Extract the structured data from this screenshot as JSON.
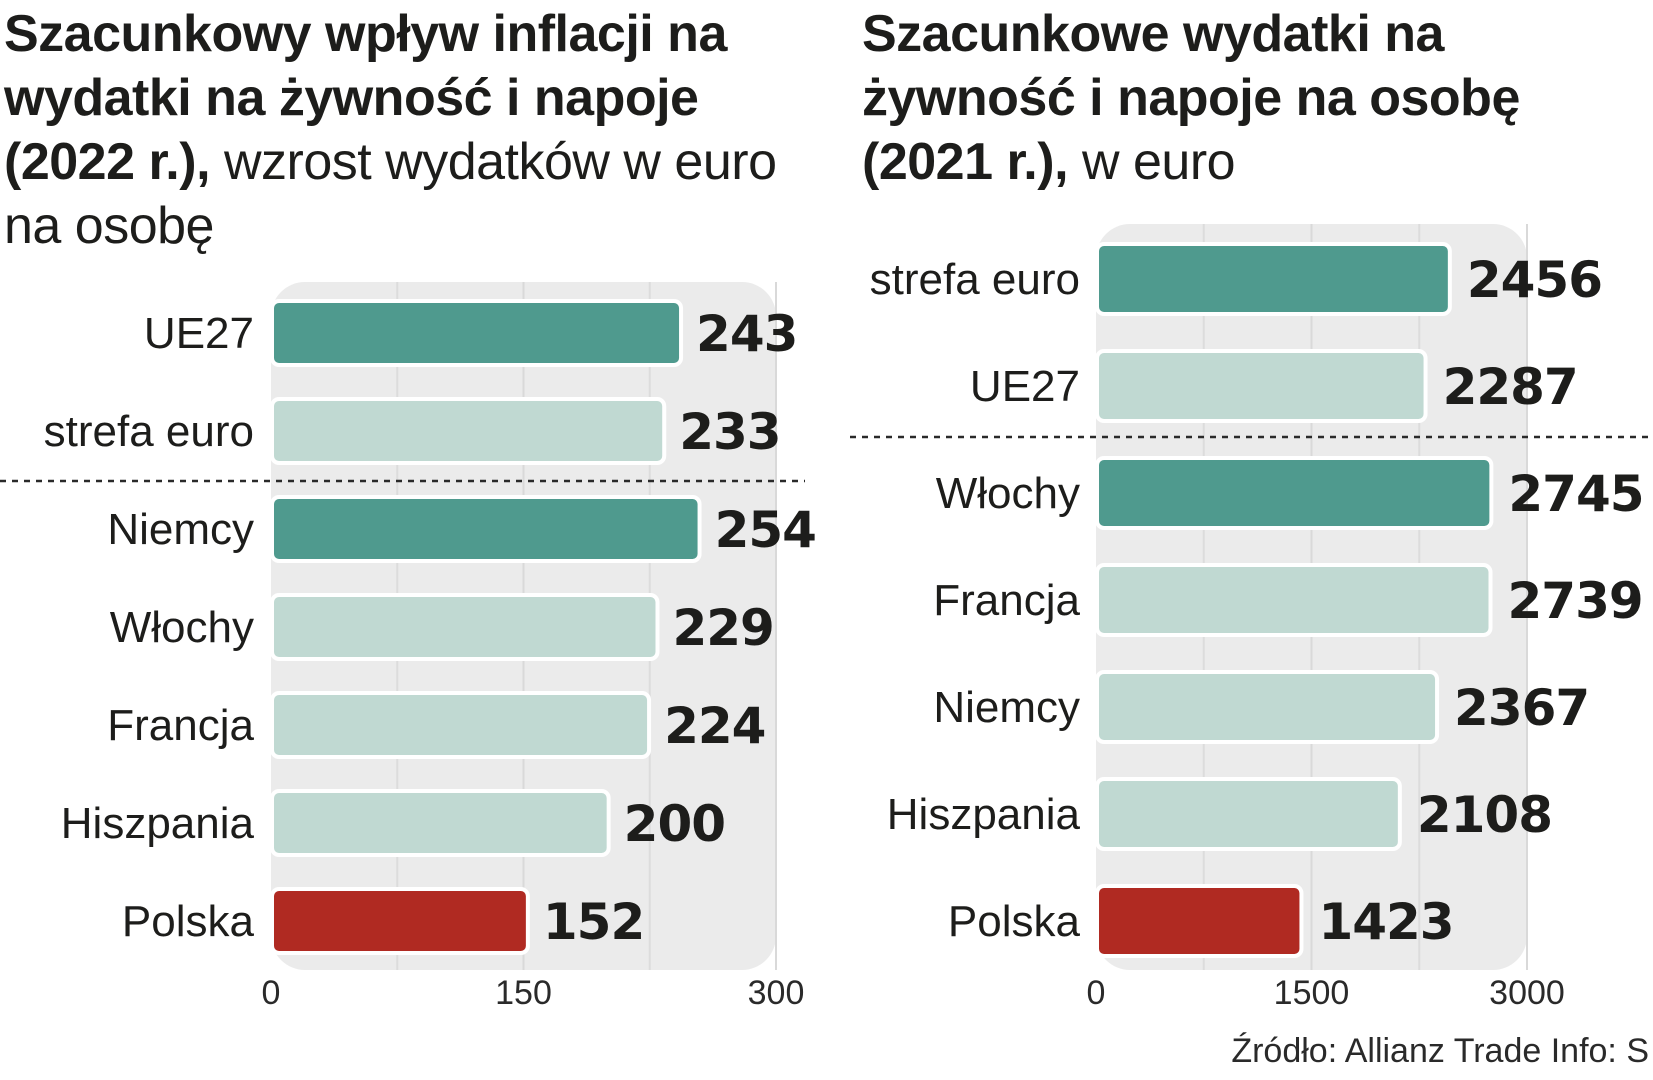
{
  "charts": [
    {
      "title_bold": "Szacunkowy wpływ inflacji na wydatki na żywność i napoje (2022 r.),",
      "title_light": " wzrost wydatków w euro na osobę"
    },
    {
      "title_bold": "Szacunkowe wydatki na żywność i napoje na osobę (2021 r.),",
      "title_light": " w euro"
    }
  ],
  "colors": {
    "highlight": "#4f9a8e",
    "normal": "#c0d9d2",
    "poland": "#b02a22",
    "panel": "#ebebeb"
  },
  "chart_data": [
    {
      "type": "bar",
      "orientation": "horizontal",
      "categories": [
        "UE27",
        "strefa euro",
        "Niemcy",
        "Włochy",
        "Francja",
        "Hiszpania",
        "Polska"
      ],
      "values": [
        243,
        233,
        254,
        229,
        224,
        200,
        152
      ],
      "value_labels": [
        "243",
        "233",
        "254",
        "229",
        "224",
        "200",
        "152"
      ],
      "bar_style": [
        "highlight",
        "normal",
        "highlight",
        "normal",
        "normal",
        "normal",
        "poland"
      ],
      "separator_after_index": 1,
      "xlim": [
        0,
        300
      ],
      "xticks": [
        0,
        150,
        300
      ],
      "xtick_labels": [
        "0",
        "150",
        "300"
      ]
    },
    {
      "type": "bar",
      "orientation": "horizontal",
      "categories": [
        "strefa euro",
        "UE27",
        "Włochy",
        "Francja",
        "Niemcy",
        "Hiszpania",
        "Polska"
      ],
      "values": [
        2456,
        2287,
        2745,
        2739,
        2367,
        2108,
        1423
      ],
      "value_labels": [
        "2456",
        "2287",
        "2745",
        "2739",
        "2367",
        "2108",
        "1423"
      ],
      "bar_style": [
        "highlight",
        "normal",
        "highlight",
        "normal",
        "normal",
        "normal",
        "poland"
      ],
      "separator_after_index": 1,
      "xlim": [
        0,
        3000
      ],
      "xticks": [
        0,
        1500,
        3000
      ],
      "xtick_labels": [
        "0",
        "1500",
        "3000"
      ]
    }
  ],
  "source": "Źródło: Allianz Trade  Info: S"
}
